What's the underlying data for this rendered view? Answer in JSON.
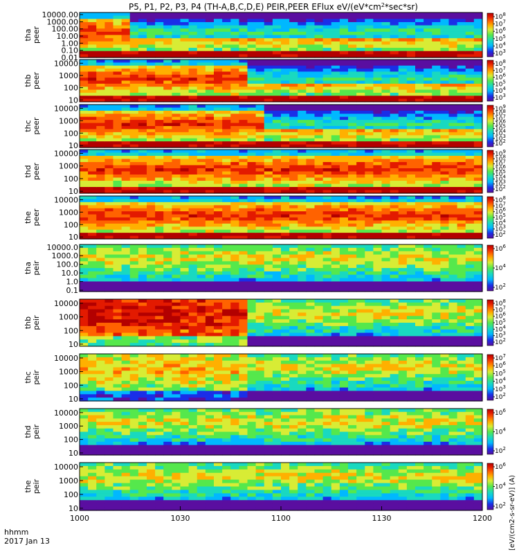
{
  "chart_data": {
    "type": "heatmap",
    "title": "P5, P1, P2, P3, P4 (TH-A,B,C,D,E) PEIR,PEER EFlux eV/(eV*cm",
    "title_sup": "2",
    "title_end": "*sec*sr)",
    "xaxis": {
      "ticks": [
        "1000",
        "1030",
        "1100",
        "1130",
        "1200"
      ],
      "row_label_1": "hhmm",
      "row_label_2": "2017 Jan 13"
    },
    "colorbar_unit_label": "[eV/(cm2-s-sr-eV)] (A)",
    "panels": [
      {
        "id": "tha-peer",
        "probe": "tha",
        "species": "peer",
        "yticks": [
          "10000.00",
          "1000.00",
          "100.00",
          "10.00",
          "1.00",
          "0.10",
          "0.01"
        ],
        "yrange": [
          0.01,
          20000
        ],
        "cbar_ticks": [
          "8",
          "7",
          "6",
          "5",
          "4",
          "3"
        ]
      },
      {
        "id": "thb-peer",
        "probe": "thb",
        "species": "peer",
        "yticks": [
          "10000",
          "1000",
          "100",
          "10"
        ],
        "yrange": [
          7,
          20000
        ],
        "cbar_ticks": [
          "8",
          "7",
          "6",
          "5",
          "4",
          "3"
        ]
      },
      {
        "id": "thc-peer",
        "probe": "thc",
        "species": "peer",
        "yticks": [
          "10000",
          "1000",
          "100",
          "10"
        ],
        "yrange": [
          7,
          20000
        ],
        "cbar_ticks": [
          "9",
          "8",
          "7",
          "6",
          "5",
          "4",
          "3",
          "2"
        ]
      },
      {
        "id": "thd-peer",
        "probe": "thd",
        "species": "peer",
        "yticks": [
          "10000",
          "1000",
          "100",
          "10"
        ],
        "yrange": [
          7,
          20000
        ],
        "cbar_ticks": [
          "9",
          "8",
          "7",
          "6",
          "5",
          "4",
          "3",
          "2"
        ]
      },
      {
        "id": "the-peer",
        "probe": "the",
        "species": "peer",
        "yticks": [
          "10000",
          "1000",
          "100",
          "10"
        ],
        "yrange": [
          7,
          20000
        ],
        "cbar_ticks": [
          "8",
          "7",
          "6",
          "5",
          "4",
          "3",
          "2"
        ]
      },
      {
        "id": "tha-peir",
        "probe": "tha",
        "species": "peir",
        "yticks": [
          "10000.0",
          "1000.0",
          "100.0",
          "10.0",
          "1.0",
          "0.1"
        ],
        "yrange": [
          0.07,
          20000
        ],
        "cbar_ticks": [
          "6",
          "4",
          "2"
        ]
      },
      {
        "id": "thb-peir",
        "probe": "thb",
        "species": "peir",
        "yticks": [
          "10000",
          "1000",
          "100",
          "10"
        ],
        "yrange": [
          7,
          20000
        ],
        "cbar_ticks": [
          "8",
          "7",
          "6",
          "5",
          "4",
          "3",
          "2"
        ]
      },
      {
        "id": "thc-peir",
        "probe": "thc",
        "species": "peir",
        "yticks": [
          "10000",
          "1000",
          "100",
          "10"
        ],
        "yrange": [
          7,
          20000
        ],
        "cbar_ticks": [
          "7",
          "6",
          "5",
          "4",
          "3",
          "2"
        ]
      },
      {
        "id": "thd-peir",
        "probe": "thd",
        "species": "peir",
        "yticks": [
          "10000",
          "1000",
          "100",
          "10"
        ],
        "yrange": [
          7,
          20000
        ],
        "cbar_ticks": [
          "6",
          "4",
          "2"
        ]
      },
      {
        "id": "the-peir",
        "probe": "the",
        "species": "peir",
        "yticks": [
          "10000",
          "1000",
          "100",
          "10"
        ],
        "yrange": [
          7,
          20000
        ],
        "cbar_ticks": [
          "6",
          "4",
          "2"
        ]
      }
    ],
    "colorscale": [
      "#5a0ea0",
      "#1a2ee8",
      "#00b8ff",
      "#19d9c0",
      "#55e84c",
      "#d8ec35",
      "#ffb000",
      "#ff6200",
      "#e31a00",
      "#b30000"
    ],
    "grid": false,
    "legend": "none"
  }
}
